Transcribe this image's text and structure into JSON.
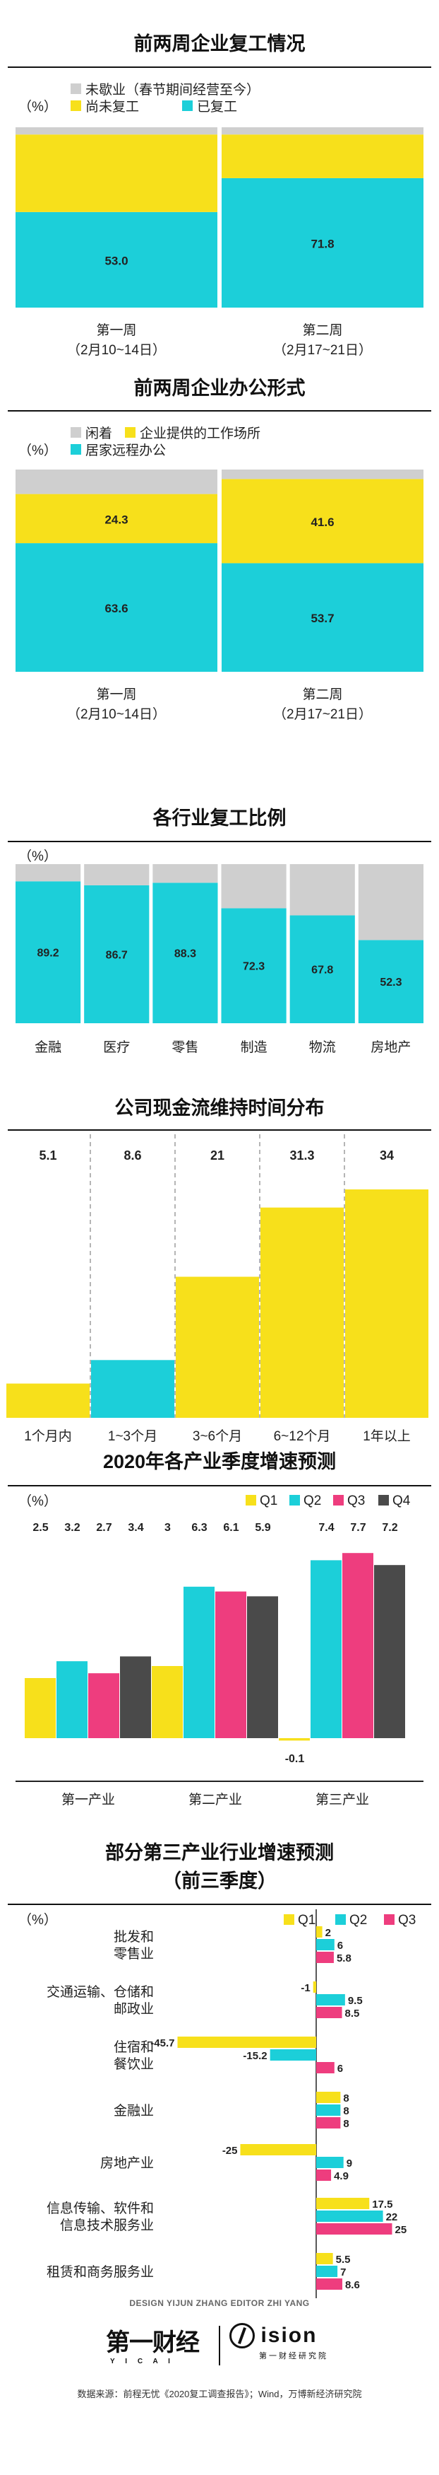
{
  "colors": {
    "cyan": "#1ccfd9",
    "yellow": "#f7e01b",
    "gray": "#cfcfcf",
    "pink": "#ee3d7e",
    "dark": "#4a4a4a"
  },
  "sec1": {
    "title": "前两周企业复工情况",
    "unit": "（%）",
    "legend": [
      "未歇业（春节期间经营至今）",
      "尚未复工",
      "已复工"
    ]
  },
  "sec2": {
    "title": "前两周企业办公形式",
    "unit": "（%）",
    "legend": [
      "闲着",
      "企业提供的工作场所",
      "居家远程办公"
    ]
  },
  "sec3": {
    "title": "各行业复工比例",
    "unit": "（%）"
  },
  "sec4": {
    "title": "公司现金流维持时间分布"
  },
  "sec5": {
    "title": "2020年各产业季度增速预测",
    "unit": "（%）"
  },
  "sec6": {
    "title_line1": "部分第三产业行业增速预测",
    "title_line2": "（前三季度）",
    "unit": "（%）"
  },
  "footer": {
    "design": "DESIGN YIJUN ZHANG    EDITOR ZHI YANG",
    "logo1": "第一财经",
    "logo1_sub": "Y I C A I",
    "logo2": "ision",
    "logo2_sub": "第一财经研究院",
    "source": "数据来源：前程无忧《2020复工调查报告》；Wind，万博新经济研究院"
  },
  "chart_data": [
    {
      "type": "bar",
      "stacked": true,
      "title": "前两周企业复工情况",
      "categories": [
        "第一周",
        "第二周"
      ],
      "category_sublabels": [
        "（2月10~14日）",
        "（2月17~21日）"
      ],
      "series": [
        {
          "name": "已复工",
          "color": "#1ccfd9",
          "values": [
            53.0,
            71.8
          ],
          "show_labels": true
        },
        {
          "name": "尚未复工",
          "color": "#f7e01b",
          "values": [
            43.0,
            24.2
          ],
          "show_labels": false
        },
        {
          "name": "未歇业（春节期间经营至今）",
          "color": "#cfcfcf",
          "values": [
            4.0,
            4.0
          ],
          "show_labels": false
        }
      ],
      "ylim": [
        0,
        100
      ]
    },
    {
      "type": "bar",
      "stacked": true,
      "title": "前两周企业办公形式",
      "categories": [
        "第一周",
        "第二周"
      ],
      "category_sublabels": [
        "（2月10~14日）",
        "（2月17~21日）"
      ],
      "series": [
        {
          "name": "居家远程办公",
          "color": "#1ccfd9",
          "values": [
            63.6,
            53.7
          ],
          "show_labels": true
        },
        {
          "name": "企业提供的工作场所",
          "color": "#f7e01b",
          "values": [
            24.3,
            41.6
          ],
          "show_labels": true
        },
        {
          "name": "闲着",
          "color": "#cfcfcf",
          "values": [
            12.1,
            4.7
          ],
          "show_labels": false
        }
      ],
      "ylim": [
        0,
        100
      ]
    },
    {
      "type": "bar",
      "stacked": true,
      "title": "各行业复工比例",
      "categories": [
        "金融",
        "医疗",
        "零售",
        "制造",
        "物流",
        "房地产"
      ],
      "series": [
        {
          "name": "复工",
          "color": "#1ccfd9",
          "values": [
            89.2,
            86.7,
            88.3,
            72.3,
            67.8,
            52.3
          ],
          "show_labels": true
        },
        {
          "name": "未复工",
          "color": "#cfcfcf",
          "values": [
            10.8,
            13.3,
            11.7,
            27.7,
            32.2,
            47.7
          ],
          "show_labels": false
        }
      ],
      "ylim": [
        0,
        100
      ]
    },
    {
      "type": "bar",
      "title": "公司现金流维持时间分布",
      "categories": [
        "1个月内",
        "1~3个月",
        "3~6个月",
        "6~12个月",
        "1年以上"
      ],
      "values": [
        5.1,
        8.6,
        21,
        31.3,
        34
      ],
      "colors": [
        "#f7e01b",
        "#1ccfd9",
        "#f7e01b",
        "#f7e01b",
        "#f7e01b"
      ]
    },
    {
      "type": "bar",
      "title": "2020年各产业季度增速预测",
      "categories": [
        "第一产业",
        "第二产业",
        "第三产业"
      ],
      "series": [
        {
          "name": "Q1",
          "color": "#f7e01b",
          "values": [
            2.5,
            3,
            -0.1
          ]
        },
        {
          "name": "Q2",
          "color": "#1ccfd9",
          "values": [
            3.2,
            6.3,
            7.4
          ]
        },
        {
          "name": "Q3",
          "color": "#ee3d7e",
          "values": [
            2.7,
            6.1,
            7.7
          ]
        },
        {
          "name": "Q4",
          "color": "#4a4a4a",
          "values": [
            3.4,
            5.9,
            7.2
          ]
        }
      ],
      "ylim": [
        -0.3,
        8.5
      ]
    },
    {
      "type": "bar",
      "orientation": "horizontal",
      "title": "部分第三产业行业增速预测（前三季度）",
      "categories": [
        [
          "批发和",
          "零售业"
        ],
        [
          "交通运输、仓储和",
          "邮政业"
        ],
        [
          "住宿和",
          "餐饮业"
        ],
        [
          "金融业"
        ],
        [
          "房地产业"
        ],
        [
          "信息传输、软件和",
          "信息技术服务业"
        ],
        [
          "租赁和商务服务业"
        ]
      ],
      "series": [
        {
          "name": "Q1",
          "color": "#f7e01b",
          "values": [
            2,
            -1,
            -45.7,
            8,
            -25,
            17.5,
            5.5
          ]
        },
        {
          "name": "Q2",
          "color": "#1ccfd9",
          "values": [
            6,
            9.5,
            -15.2,
            8,
            9,
            22,
            7
          ]
        },
        {
          "name": "Q3",
          "color": "#ee3d7e",
          "values": [
            5.8,
            8.5,
            6,
            8,
            4.9,
            25,
            8.6
          ]
        }
      ],
      "xlim": [
        -46,
        26
      ]
    }
  ]
}
